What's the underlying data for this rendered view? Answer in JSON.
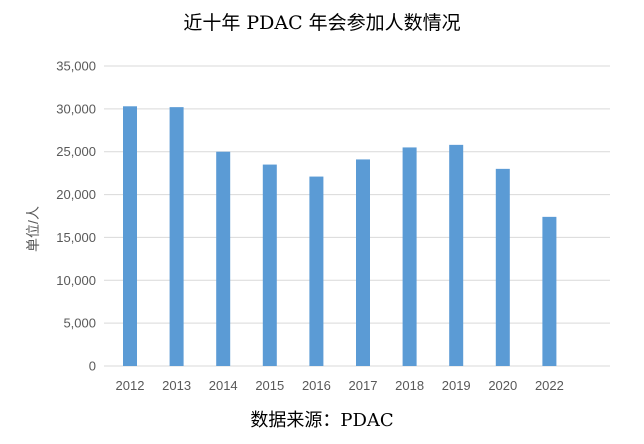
{
  "chart_data": {
    "type": "bar",
    "title": "近十年 PDAC 年会参加人数情况",
    "ylabel": "单位/人",
    "xlabel": "",
    "source": "数据来源：PDAC",
    "categories": [
      "2012",
      "2013",
      "2014",
      "2015",
      "2016",
      "2017",
      "2018",
      "2019",
      "2020",
      "2022"
    ],
    "values": [
      30300,
      30200,
      25000,
      23500,
      22100,
      24100,
      25500,
      25800,
      23000,
      17400
    ],
    "ylim": [
      0,
      35000
    ],
    "yticks": [
      0,
      5000,
      10000,
      15000,
      20000,
      25000,
      30000,
      35000
    ],
    "ytick_labels": [
      "0",
      "5,000",
      "10,000",
      "15,000",
      "20,000",
      "25,000",
      "30,000",
      "35,000"
    ],
    "grid": true,
    "bar_color": "#5B9BD5",
    "grid_color": "#D9D9D9"
  }
}
